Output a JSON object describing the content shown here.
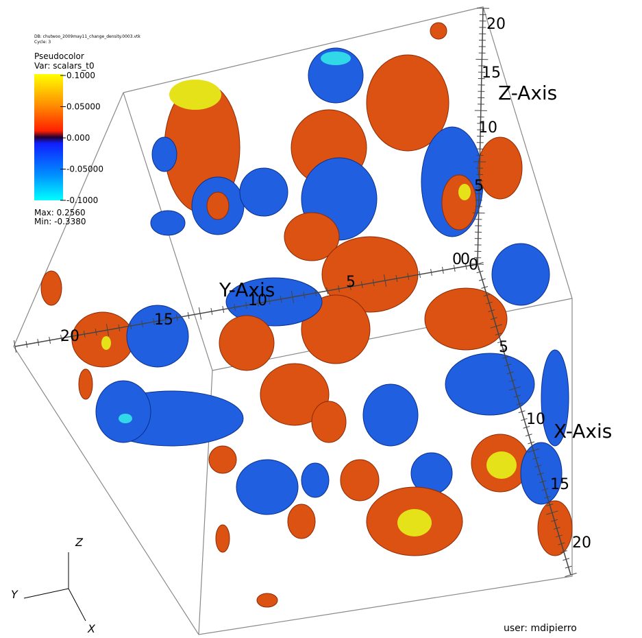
{
  "header": {
    "database": "DB: chutwoo_2009may11_change_density.0003.vtk",
    "cycle": "Cycle: 3"
  },
  "legend": {
    "title": "Pseudocolor",
    "variable": "Var: scalars_t0",
    "labels": [
      "0.1000",
      "0.05000",
      "0.000",
      "-0.05000",
      "-0.1000"
    ],
    "max": "Max: 0.2560",
    "min": "Min: -0.3380"
  },
  "axes": {
    "z": {
      "title": "Z-Axis",
      "ticks": [
        20,
        15,
        10,
        5,
        0
      ]
    },
    "y": {
      "title": "Y-Axis",
      "ticks": [
        20,
        15,
        10,
        5,
        0
      ]
    },
    "x": {
      "title": "X-Axis",
      "ticks": [
        0,
        5,
        10,
        15,
        20
      ]
    }
  },
  "triad": {
    "z": "Z",
    "y": "Y",
    "x": "X"
  },
  "user": "user: mdipierro"
}
